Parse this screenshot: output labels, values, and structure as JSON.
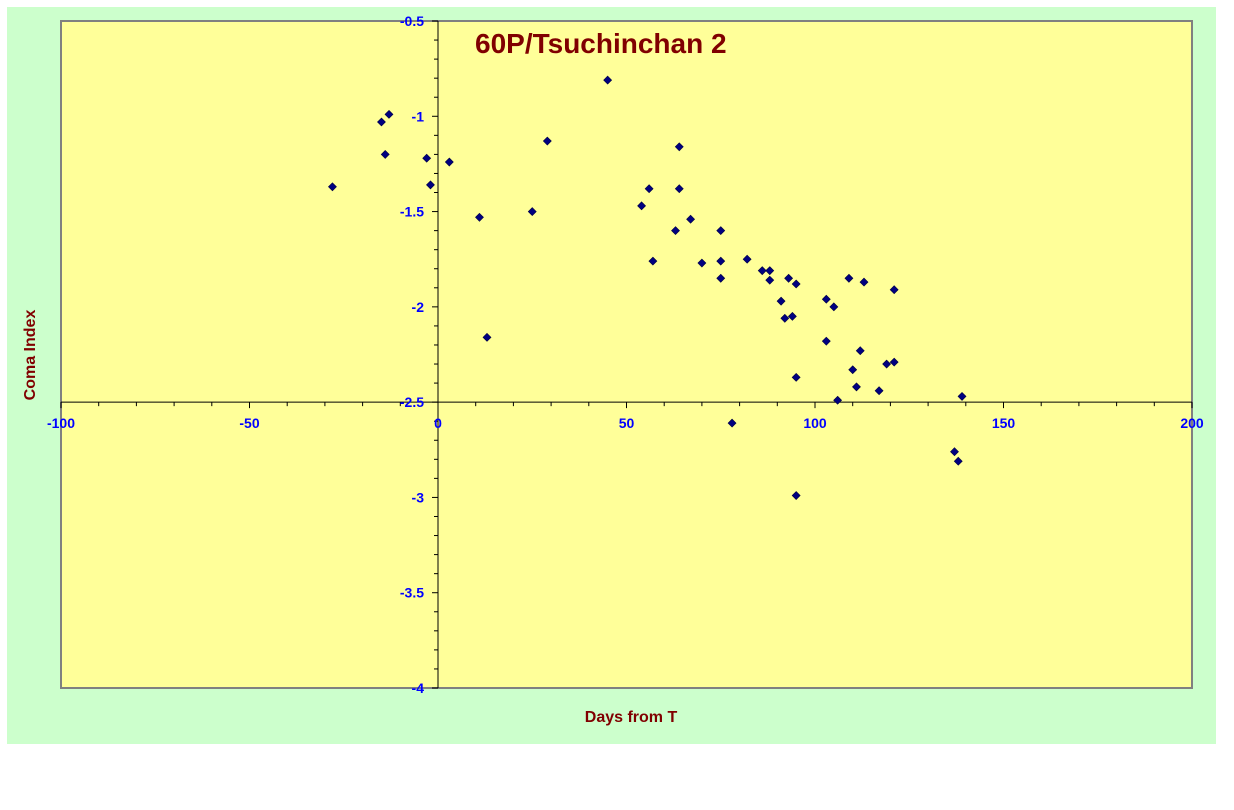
{
  "chart_data": {
    "type": "scatter",
    "title": "60P/Tsuchinchan 2",
    "xlabel": "Days from T",
    "ylabel": "Coma Index",
    "xlim": [
      -100,
      200
    ],
    "ylim": [
      -4,
      -0.5
    ],
    "x_ticks": [
      "-100",
      "-50",
      "0",
      "50",
      "100",
      "150",
      "200"
    ],
    "y_ticks": [
      "-0.5",
      "-1",
      "-1.5",
      "-2",
      "-2.5",
      "-3",
      "-3.5",
      "-4"
    ],
    "grid": false,
    "legend": "none",
    "colors": {
      "background": "#ccffcc",
      "plot": "#ffff99",
      "marker": "#000080",
      "title": "#800000",
      "ticks": "#0000ff"
    },
    "x": [
      -28,
      -15,
      -14,
      -13,
      -3,
      -2,
      3,
      11,
      13,
      25,
      29,
      45,
      54,
      56,
      57,
      63,
      64,
      64,
      67,
      70,
      75,
      75,
      75,
      78,
      82,
      86,
      88,
      88,
      91,
      92,
      93,
      94,
      95,
      95,
      95,
      103,
      103,
      105,
      106,
      109,
      110,
      111,
      112,
      113,
      117,
      119,
      121,
      121,
      137,
      138,
      139
    ],
    "y": [
      -1.37,
      -1.03,
      -1.2,
      -0.99,
      -1.22,
      -1.36,
      -1.24,
      -1.53,
      -2.16,
      -1.5,
      -1.13,
      -0.81,
      -1.47,
      -1.38,
      -1.76,
      -1.6,
      -1.16,
      -1.38,
      -1.54,
      -1.77,
      -1.6,
      -1.76,
      -1.85,
      -2.61,
      -1.75,
      -1.81,
      -1.81,
      -1.86,
      -1.97,
      -2.06,
      -1.85,
      -2.05,
      -1.88,
      -2.37,
      -2.99,
      -1.96,
      -2.18,
      -2.0,
      -2.49,
      -1.85,
      -2.33,
      -2.42,
      -2.23,
      -1.87,
      -2.44,
      -2.3,
      -1.91,
      -2.29,
      -2.76,
      -2.81,
      -2.47
    ]
  }
}
